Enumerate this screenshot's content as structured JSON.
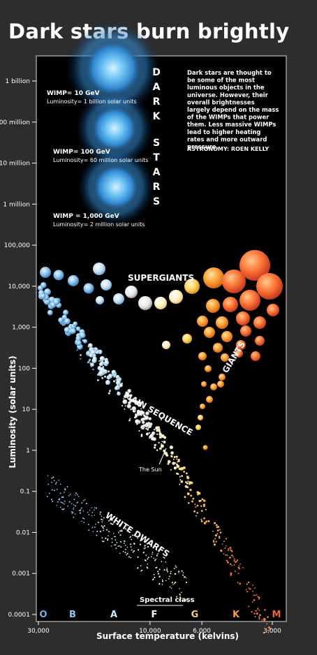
{
  "title": "Dark stars burn brightly",
  "chart_data": {
    "type": "scatter",
    "title": "Dark stars burn brightly",
    "xlabel": "Surface temperature (kelvins)",
    "ylabel": "Luminosity (solar units)",
    "x_scale": "log-reversed",
    "y_scale": "log",
    "xlim": [
      30000,
      2800
    ],
    "ylim": [
      0.0001,
      2000000000
    ],
    "x_ticks": [
      {
        "value": 30000,
        "label": "30,000"
      },
      {
        "value": 10000,
        "label": "10,000"
      },
      {
        "value": 6000,
        "label": "6,000"
      },
      {
        "value": 3000,
        "label": "3,000"
      }
    ],
    "y_ticks": [
      {
        "value": 1000000000,
        "label": "1 billion"
      },
      {
        "value": 100000000,
        "label": "100 million"
      },
      {
        "value": 10000000,
        "label": "10 million"
      },
      {
        "value": 1000000,
        "label": "1 million"
      },
      {
        "value": 100000,
        "label": "100,000"
      },
      {
        "value": 10000,
        "label": "10,000"
      },
      {
        "value": 1000,
        "label": "1,000"
      },
      {
        "value": 100,
        "label": "100"
      },
      {
        "value": 10,
        "label": "10"
      },
      {
        "value": 1,
        "label": "1"
      },
      {
        "value": 0.1,
        "label": "0.1"
      },
      {
        "value": 0.01,
        "label": "0.01"
      },
      {
        "value": 0.001,
        "label": "0.001"
      },
      {
        "value": 0.0001,
        "label": "0.0001"
      }
    ],
    "spectral_class_label": "Spectral class",
    "spectral_classes": [
      {
        "label": "O",
        "temp": 30000,
        "color": "#6fb3e8"
      },
      {
        "label": "B",
        "temp": 20000,
        "color": "#8fc6ee"
      },
      {
        "label": "A",
        "temp": 9800,
        "color": "#cfe6f7"
      },
      {
        "label": "F",
        "temp": 7300,
        "color": "#ffffff"
      },
      {
        "label": "G",
        "temp": 5600,
        "color": "#f6d36a"
      },
      {
        "label": "K",
        "temp": 4100,
        "color": "#f5a23a"
      },
      {
        "label": "M",
        "temp": 3100,
        "color": "#e8663a"
      }
    ],
    "dark_stars_label": "DARK STARS",
    "dark_stars": [
      {
        "wimp": "WIMP= 10 GeV",
        "luminosity_text": "Luminosity= 1 billion solar units",
        "luminosity": 1000000000
      },
      {
        "wimp": "WIMP= 100 GeV",
        "luminosity_text": "Luminosity= 60 million solar units",
        "luminosity": 60000000
      },
      {
        "wimp": "WIMP = 1,000 GeV",
        "luminosity_text": "Luminosity= 2 million solar units",
        "luminosity": 2000000
      }
    ],
    "annotation": "Dark stars are thought to be some of the most luminous objects in the universe. However, their overall brightnesses largely depend on the mass of the WIMPs that power them. Less massive WIMPs lead to higher heating rates and more outward pressure.",
    "credit": "ASTRONOMY: ROEN KELLY",
    "groups": [
      {
        "name": "SUPERGIANTS",
        "temp_range": [
          30000,
          3000
        ],
        "luminosity_range": [
          3000,
          30000
        ]
      },
      {
        "name": "GIANTS",
        "temp_range": [
          6000,
          3200
        ],
        "luminosity_range": [
          3,
          3000
        ]
      },
      {
        "name": "MAIN SEQUENCE",
        "temp_range": [
          30000,
          3000
        ],
        "luminosity_range": [
          0.001,
          10000
        ]
      },
      {
        "name": "WHITE DWARFS",
        "temp_range": [
          30000,
          5000
        ],
        "luminosity_range": [
          0.0005,
          0.2
        ]
      }
    ],
    "sun_label": "The Sun",
    "sun": {
      "temp": 5800,
      "luminosity": 1
    },
    "grid": false,
    "legend": "none"
  },
  "colors": {
    "background": "#2d2d2d",
    "plot_background": "#000000",
    "blue": "#7ab8ea",
    "orange": "#ff8a2a"
  }
}
